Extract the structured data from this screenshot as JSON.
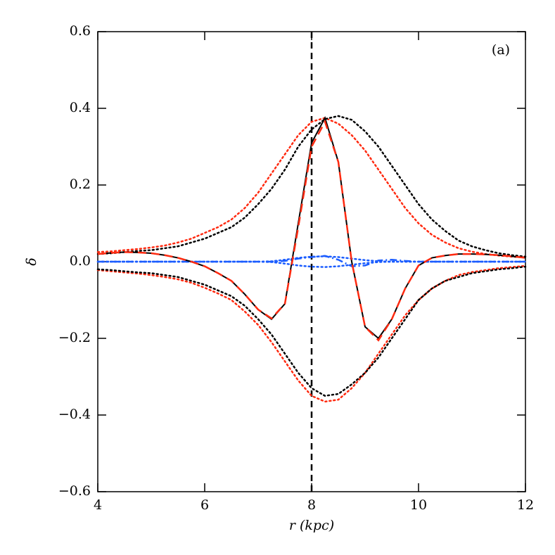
{
  "chart_data": {
    "type": "line",
    "annotation": "(a)",
    "xlabel": "r (kpc)",
    "ylabel": "δ",
    "xlim": [
      4,
      12
    ],
    "xticks": [
      4,
      6,
      8,
      10,
      12
    ],
    "ylim": [
      -0.6,
      0.6
    ],
    "yticks": [
      {
        "value": -0.6,
        "label": "−0.6"
      },
      {
        "value": -0.4,
        "label": "−0.4"
      },
      {
        "value": -0.2,
        "label": "−0.2"
      },
      {
        "value": 0,
        "label": "0.0"
      },
      0.2,
      0.4,
      0.6
    ],
    "vline": 8,
    "x": [
      4,
      4.25,
      4.5,
      4.75,
      5,
      5.25,
      5.5,
      5.75,
      6,
      6.25,
      6.5,
      6.75,
      7,
      7.25,
      7.5,
      7.75,
      8,
      8.25,
      8.5,
      8.75,
      9,
      9.25,
      9.5,
      9.75,
      10,
      10.25,
      10.5,
      10.75,
      11,
      11.25,
      11.5,
      11.75,
      12
    ],
    "series": [
      {
        "color": "#ff2a10",
        "dash": "dotted",
        "values": [
          0.025,
          0.027,
          0.03,
          0.033,
          0.037,
          0.042,
          0.05,
          0.06,
          0.075,
          0.09,
          0.11,
          0.14,
          0.18,
          0.23,
          0.28,
          0.33,
          0.365,
          0.375,
          0.36,
          0.33,
          0.29,
          0.24,
          0.19,
          0.14,
          0.1,
          0.07,
          0.05,
          0.035,
          0.026,
          0.02,
          0.016,
          0.013,
          0.011
        ]
      },
      {
        "color": "#ff2a10",
        "dash": "dotted",
        "values": [
          -0.022,
          -0.025,
          -0.028,
          -0.031,
          -0.035,
          -0.04,
          -0.046,
          -0.055,
          -0.068,
          -0.083,
          -0.1,
          -0.13,
          -0.165,
          -0.21,
          -0.26,
          -0.31,
          -0.35,
          -0.365,
          -0.36,
          -0.33,
          -0.29,
          -0.24,
          -0.19,
          -0.14,
          -0.1,
          -0.07,
          -0.05,
          -0.035,
          -0.027,
          -0.022,
          -0.017,
          -0.014,
          -0.011
        ]
      },
      {
        "color": "#000000",
        "dash": "dotted",
        "values": [
          0.02,
          0.022,
          0.025,
          0.028,
          0.03,
          0.035,
          0.04,
          0.05,
          0.06,
          0.075,
          0.09,
          0.115,
          0.15,
          0.19,
          0.24,
          0.3,
          0.345,
          0.372,
          0.38,
          0.37,
          0.34,
          0.3,
          0.25,
          0.2,
          0.15,
          0.11,
          0.08,
          0.055,
          0.04,
          0.03,
          0.022,
          0.017,
          0.013
        ]
      },
      {
        "color": "#000000",
        "dash": "dotted",
        "values": [
          -0.02,
          -0.022,
          -0.025,
          -0.028,
          -0.03,
          -0.035,
          -0.04,
          -0.05,
          -0.06,
          -0.075,
          -0.09,
          -0.115,
          -0.15,
          -0.19,
          -0.24,
          -0.29,
          -0.33,
          -0.35,
          -0.345,
          -0.32,
          -0.29,
          -0.25,
          -0.2,
          -0.15,
          -0.1,
          -0.07,
          -0.05,
          -0.04,
          -0.03,
          -0.025,
          -0.02,
          -0.017,
          -0.013
        ]
      },
      {
        "color": "#1a5cff",
        "dash": "dotted",
        "values": [
          0,
          0,
          0,
          0,
          0,
          0,
          0,
          0,
          0,
          0,
          0,
          0,
          0,
          0.001,
          0.005,
          0.01,
          0.013,
          0.014,
          0.012,
          0.008,
          0.004,
          0.001,
          0,
          0,
          0,
          0,
          0,
          0,
          0,
          0,
          0,
          0,
          0
        ]
      },
      {
        "color": "#1a5cff",
        "dash": "dotted",
        "values": [
          0,
          0,
          0,
          0,
          0,
          0,
          0,
          0,
          0,
          0,
          0,
          0,
          0,
          -0.001,
          -0.005,
          -0.01,
          -0.013,
          -0.014,
          -0.012,
          -0.008,
          -0.004,
          -0.001,
          0,
          0,
          0,
          0,
          0,
          0,
          0,
          0,
          0,
          0,
          0
        ]
      },
      {
        "color": "#1a5cff",
        "dash": "dashdot",
        "values": [
          0,
          0,
          0,
          0,
          0,
          0,
          0,
          0,
          0,
          0,
          0,
          0,
          0,
          0,
          0.002,
          0.008,
          0.012,
          0.015,
          0.005,
          -0.012,
          -0.01,
          0.003,
          0.005,
          0.002,
          0,
          0,
          0,
          0,
          0,
          0,
          0,
          0,
          0
        ]
      },
      {
        "color": "#000000",
        "dash": "solid",
        "values": [
          0.02,
          0.023,
          0.025,
          0.024,
          0.022,
          0.017,
          0.01,
          0,
          -0.012,
          -0.03,
          -0.05,
          -0.085,
          -0.125,
          -0.15,
          -0.11,
          0.1,
          0.31,
          0.375,
          0.26,
          0,
          -0.17,
          -0.2,
          -0.15,
          -0.07,
          -0.01,
          0.01,
          0.016,
          0.02,
          0.02,
          0.019,
          0.017,
          0.014,
          0.01
        ]
      },
      {
        "color": "#ff2a10",
        "dash": "dashed",
        "values": [
          0.02,
          0.023,
          0.025,
          0.024,
          0.022,
          0.017,
          0.01,
          0,
          -0.012,
          -0.03,
          -0.05,
          -0.085,
          -0.125,
          -0.148,
          -0.11,
          0.09,
          0.3,
          0.365,
          0.26,
          0,
          -0.17,
          -0.205,
          -0.15,
          -0.07,
          -0.01,
          0.01,
          0.016,
          0.02,
          0.02,
          0.019,
          0.017,
          0.014,
          0.01
        ]
      }
    ]
  }
}
